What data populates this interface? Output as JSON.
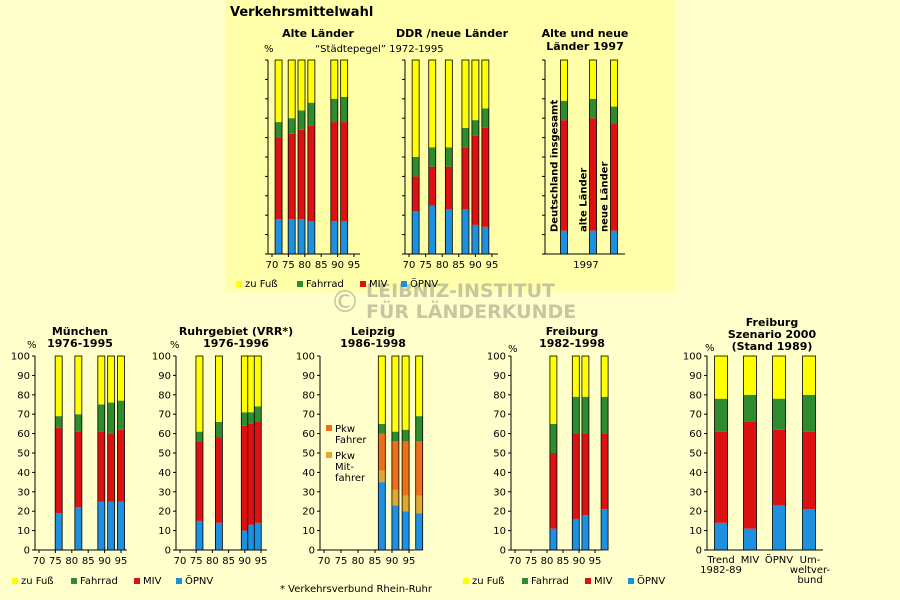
{
  "title": "Verkehrsmittelwahl",
  "watermark": {
    "symbol": "©",
    "line1": "LEIBNIZ-INSTITUT",
    "line2": "FÜR LÄNDERKUNDE"
  },
  "colors": {
    "fuss": "#ffff00",
    "fahrrad": "#2e8b2e",
    "miv": "#dd1111",
    "oepnv": "#1e90e0",
    "pkw_fahrer": "#ee6f1a",
    "pkw_mitfahrer": "#e0a830",
    "bg": "#ffffcc",
    "panel": "#ffffaa"
  },
  "legend": {
    "fuss": "zu Fuß",
    "fahrrad": "Fahrrad",
    "miv": "MIV",
    "oepnv": "ÖPNV"
  },
  "footnote": "* Verkehrsverbund Rhein-Ruhr",
  "chart_data": [
    {
      "id": "alte",
      "type": "bar",
      "stacked": true,
      "title": "Alte Länder",
      "subtitle": "“Städtepegel” 1972-1995",
      "unit": "%",
      "ylim": [
        0,
        100
      ],
      "show_y_ticks": false,
      "x_tick_labels": [
        "70",
        "75",
        "80",
        "85",
        "90",
        "95"
      ],
      "x_range": [
        1970,
        1995
      ],
      "bars": [
        {
          "x": 1972,
          "oepnv": 18,
          "miv": 42,
          "fahrrad": 8,
          "fuss": 32
        },
        {
          "x": 1976,
          "oepnv": 18,
          "miv": 44,
          "fahrrad": 8,
          "fuss": 30
        },
        {
          "x": 1979,
          "oepnv": 18,
          "miv": 46,
          "fahrrad": 10,
          "fuss": 26
        },
        {
          "x": 1982,
          "oepnv": 17,
          "miv": 49,
          "fahrrad": 12,
          "fuss": 22
        },
        {
          "x": 1989,
          "oepnv": 17,
          "miv": 51,
          "fahrrad": 12,
          "fuss": 20
        },
        {
          "x": 1992,
          "oepnv": 17,
          "miv": 51,
          "fahrrad": 13,
          "fuss": 19
        }
      ]
    },
    {
      "id": "ddr",
      "type": "bar",
      "stacked": true,
      "title": "DDR /neue Länder",
      "ylim": [
        0,
        100
      ],
      "show_y_ticks": false,
      "x_tick_labels": [
        "70",
        "75",
        "80",
        "85",
        "90",
        "95"
      ],
      "x_range": [
        1970,
        1995
      ],
      "bars": [
        {
          "x": 1972,
          "oepnv": 22,
          "miv": 18,
          "fahrrad": 10,
          "fuss": 50
        },
        {
          "x": 1977,
          "oepnv": 25,
          "miv": 20,
          "fahrrad": 10,
          "fuss": 45
        },
        {
          "x": 1982,
          "oepnv": 23,
          "miv": 22,
          "fahrrad": 10,
          "fuss": 45
        },
        {
          "x": 1987,
          "oepnv": 23,
          "miv": 32,
          "fahrrad": 10,
          "fuss": 35
        },
        {
          "x": 1990,
          "oepnv": 15,
          "miv": 46,
          "fahrrad": 8,
          "fuss": 31
        },
        {
          "x": 1993,
          "oepnv": 14,
          "miv": 51,
          "fahrrad": 10,
          "fuss": 25
        }
      ]
    },
    {
      "id": "gesamt",
      "type": "bar",
      "stacked": true,
      "title_lines": [
        "Alte und neue",
        "Länder 1997"
      ],
      "ylim": [
        0,
        100
      ],
      "show_y_ticks": false,
      "x_label": "1997",
      "bars": [
        {
          "label": "Deutschland insgesamt",
          "oepnv": 12,
          "miv": 57,
          "fahrrad": 10,
          "fuss": 21
        },
        {
          "label": "alte Länder",
          "oepnv": 12,
          "miv": 58,
          "fahrrad": 10,
          "fuss": 20
        },
        {
          "label": "neue Länder",
          "oepnv": 12,
          "miv": 55,
          "fahrrad": 9,
          "fuss": 24
        }
      ]
    },
    {
      "id": "muenchen",
      "type": "bar",
      "stacked": true,
      "title_lines": [
        "München",
        "1976-1995"
      ],
      "unit": "%",
      "ylim": [
        0,
        100
      ],
      "y_ticks": [
        0,
        10,
        20,
        30,
        40,
        50,
        60,
        70,
        80,
        90,
        100
      ],
      "x_tick_labels": [
        "70",
        "75",
        "80",
        "85",
        "90",
        "95"
      ],
      "x_range": [
        1970,
        1995
      ],
      "bars": [
        {
          "x": 1976,
          "oepnv": 19,
          "miv": 44,
          "fahrrad": 6,
          "fuss": 31
        },
        {
          "x": 1982,
          "oepnv": 22,
          "miv": 39,
          "fahrrad": 9,
          "fuss": 30
        },
        {
          "x": 1989,
          "oepnv": 25,
          "miv": 36,
          "fahrrad": 14,
          "fuss": 25
        },
        {
          "x": 1992,
          "oepnv": 25,
          "miv": 35,
          "fahrrad": 16,
          "fuss": 24
        },
        {
          "x": 1995,
          "oepnv": 25,
          "miv": 37,
          "fahrrad": 15,
          "fuss": 23
        }
      ]
    },
    {
      "id": "ruhr",
      "type": "bar",
      "stacked": true,
      "title_lines": [
        "Ruhrgebiet (VRR*)",
        "1976-1996"
      ],
      "unit": "%",
      "ylim": [
        0,
        100
      ],
      "y_ticks": [
        0,
        10,
        20,
        30,
        40,
        50,
        60,
        70,
        80,
        90,
        100
      ],
      "x_tick_labels": [
        "70",
        "75",
        "80",
        "85",
        "90",
        "95"
      ],
      "x_range": [
        1970,
        1995
      ],
      "bars": [
        {
          "x": 1976,
          "oepnv": 15,
          "miv": 41,
          "fahrrad": 5,
          "fuss": 39
        },
        {
          "x": 1982,
          "oepnv": 14,
          "miv": 44,
          "fahrrad": 8,
          "fuss": 34
        },
        {
          "x": 1990,
          "oepnv": 10,
          "miv": 54,
          "fahrrad": 7,
          "fuss": 29
        },
        {
          "x": 1992,
          "oepnv": 13,
          "miv": 52,
          "fahrrad": 6,
          "fuss": 29
        },
        {
          "x": 1994,
          "oepnv": 14,
          "miv": 52,
          "fahrrad": 8,
          "fuss": 26
        }
      ]
    },
    {
      "id": "leipzig",
      "type": "bar",
      "stacked": true,
      "title_lines": [
        "Leipzig",
        "1986-1998"
      ],
      "ylim": [
        0,
        100
      ],
      "y_ticks": [
        0,
        10,
        20,
        30,
        40,
        50,
        60,
        70,
        80,
        90,
        100
      ],
      "x_tick_labels": [
        "70",
        "75",
        "80",
        "85",
        "90",
        "95"
      ],
      "x_range": [
        1970,
        1995
      ],
      "legend_notes": [
        "Pkw Fahrer",
        "Pkw Mit- fahrer"
      ],
      "bars": [
        {
          "x": 1987,
          "oepnv": 35,
          "pkw_mitfahrer": 6,
          "pkw_fahrer": 19,
          "fahrrad": 5,
          "fuss": 35
        },
        {
          "x": 1991,
          "oepnv": 23,
          "pkw_mitfahrer": 8,
          "pkw_fahrer": 25,
          "fahrrad": 5,
          "fuss": 39
        },
        {
          "x": 1994,
          "oepnv": 20,
          "pkw_mitfahrer": 8,
          "pkw_fahrer": 28,
          "fahrrad": 6,
          "fuss": 38
        },
        {
          "x": 1998,
          "oepnv": 19,
          "pkw_mitfahrer": 9,
          "pkw_fahrer": 28,
          "fahrrad": 13,
          "fuss": 31
        }
      ]
    },
    {
      "id": "freiburg",
      "type": "bar",
      "stacked": true,
      "title_lines": [
        "Freiburg",
        "1982-1998"
      ],
      "unit": "%",
      "ylim": [
        0,
        100
      ],
      "y_ticks": [
        0,
        10,
        20,
        30,
        40,
        50,
        60,
        70,
        80,
        90,
        100
      ],
      "x_tick_labels": [
        "70",
        "75",
        "80",
        "85",
        "90",
        "95"
      ],
      "x_range": [
        1970,
        1995
      ],
      "bars": [
        {
          "x": 1982,
          "oepnv": 11,
          "miv": 39,
          "fahrrad": 15,
          "fuss": 35
        },
        {
          "x": 1989,
          "oepnv": 16,
          "miv": 44,
          "fahrrad": 19,
          "fuss": 21
        },
        {
          "x": 1992,
          "oepnv": 18,
          "miv": 42,
          "fahrrad": 19,
          "fuss": 21
        },
        {
          "x": 1998,
          "oepnv": 21,
          "miv": 39,
          "fahrrad": 19,
          "fuss": 21
        }
      ]
    },
    {
      "id": "szenario",
      "type": "bar",
      "stacked": true,
      "title_lines": [
        "Freiburg",
        "Szenario 2000",
        "(Stand 1989)"
      ],
      "unit": "%",
      "ylim": [
        0,
        100
      ],
      "y_ticks": [
        0,
        10,
        20,
        30,
        40,
        50,
        60,
        70,
        80,
        90,
        100
      ],
      "bars": [
        {
          "label": "Trend 1982-89",
          "oepnv": 14,
          "miv": 47,
          "fahrrad": 17,
          "fuss": 22
        },
        {
          "label": "MIV",
          "oepnv": 11,
          "miv": 55,
          "fahrrad": 14,
          "fuss": 20
        },
        {
          "label": "ÖPNV",
          "oepnv": 23,
          "miv": 39,
          "fahrrad": 16,
          "fuss": 22
        },
        {
          "label": "Umweltverbund",
          "oepnv": 21,
          "miv": 40,
          "fahrrad": 19,
          "fuss": 20
        }
      ]
    }
  ]
}
